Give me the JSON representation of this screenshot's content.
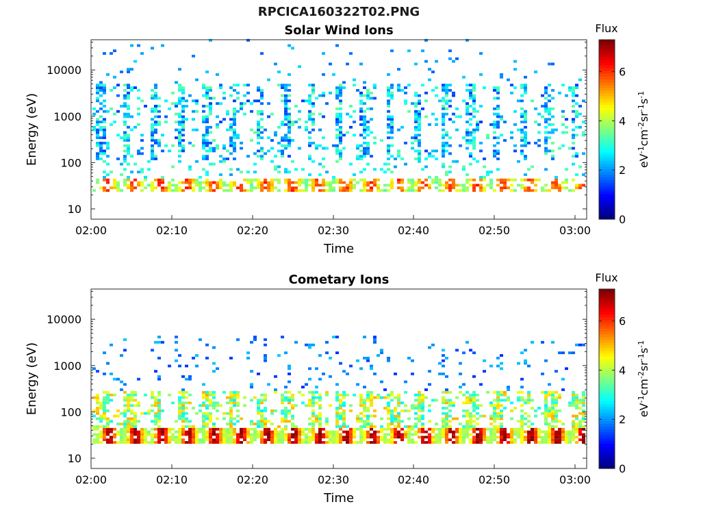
{
  "figure_title": "RPCICA160322T02.PNG",
  "chart_data": [
    {
      "type": "heatmap",
      "title": "Solar Wind Ions",
      "xlabel": "Time",
      "ylabel": "Energy (eV)",
      "y_scale": "log",
      "ylim": [
        6,
        45000
      ],
      "x_tick_labels": [
        "02:00",
        "02:10",
        "02:20",
        "02:30",
        "02:40",
        "02:50",
        "03:00"
      ],
      "y_tick_labels": [
        "10",
        "100",
        "1000",
        "10000"
      ],
      "colorbar": {
        "label": "Flux",
        "unit": "eV-1cm-2sr-1s-1",
        "range": [
          0,
          7.3
        ],
        "tick_labels": [
          "0",
          "2",
          "4",
          "6"
        ]
      },
      "series_description": "Periodic ion bursts roughly every 3 min: high-flux band ~25-45 eV (values 4-6), sparse 100-5000 eV cells (values 1.5-3.5)"
    },
    {
      "type": "heatmap",
      "title": "Cometary Ions",
      "xlabel": "Time",
      "ylabel": "Energy (eV)",
      "y_scale": "log",
      "ylim": [
        6,
        45000
      ],
      "x_tick_labels": [
        "02:00",
        "02:10",
        "02:20",
        "02:30",
        "02:40",
        "02:50",
        "03:00"
      ],
      "y_tick_labels": [
        "10",
        "100",
        "1000",
        "10000"
      ],
      "colorbar": {
        "label": "Flux",
        "unit": "eV-1cm-2sr-1s-1",
        "range": [
          0,
          7.3
        ],
        "tick_labels": [
          "0",
          "2",
          "4",
          "6"
        ]
      },
      "series_description": "Periodic bursts roughly every 3 min: intense band ~20-40 eV (values 5-7), dispersed 50-300 eV tails (values 3-5), sparse high-energy cells"
    }
  ]
}
